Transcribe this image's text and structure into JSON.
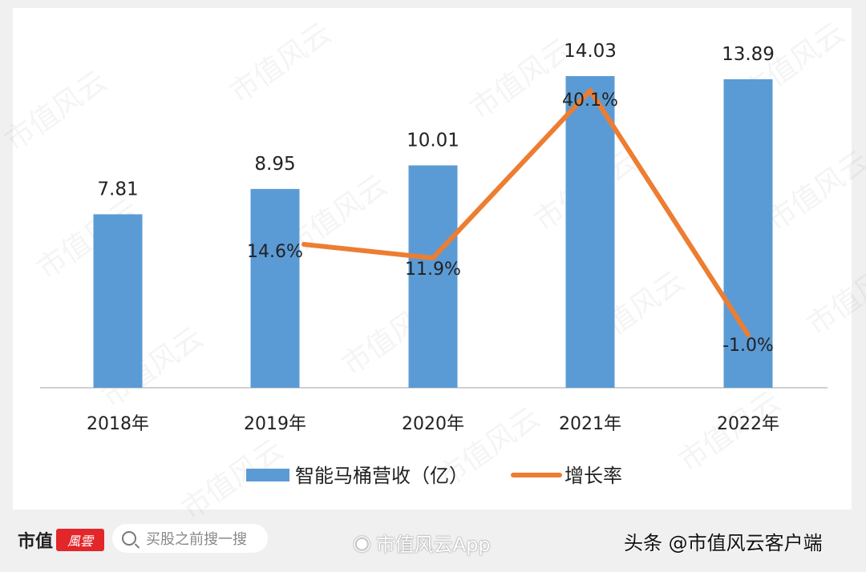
{
  "chart_data": {
    "type": "bar+line",
    "categories": [
      "2018年",
      "2019年",
      "2020年",
      "2021年",
      "2022年"
    ],
    "series": [
      {
        "name": "智能马桶营收（亿）",
        "type": "bar",
        "color": "#5b9bd5",
        "values": [
          7.81,
          8.95,
          10.01,
          14.03,
          13.89
        ],
        "labels": [
          "7.81",
          "8.95",
          "10.01",
          "14.03",
          "13.89"
        ]
      },
      {
        "name": "增长率",
        "type": "line",
        "color": "#ed7d31",
        "values": [
          null,
          14.6,
          11.9,
          40.1,
          -1.0
        ],
        "labels": [
          "",
          "14.6%",
          "11.9%",
          "40.1%",
          "-1.0%"
        ]
      }
    ],
    "title": "",
    "xlabel": "",
    "ylabel": "",
    "ylim": [
      0,
      14.03
    ],
    "grid": false,
    "legend_position": "bottom"
  },
  "legend": {
    "bar_label": "智能马桶营收（亿）",
    "line_label": "增长率"
  },
  "watermark": "市值风云",
  "footer": {
    "brand_text": "市值",
    "brand_badge": "風雲",
    "search_placeholder": "买股之前搜一搜",
    "weibo_text": "市值风云App",
    "toutiao_text": "头条 @市值风云客户端"
  },
  "colors": {
    "bar": "#5b9bd5",
    "line": "#ed7d31",
    "axis": "#d0d0d0",
    "background": "#f0f0f0",
    "brand_red": "#e3262a"
  }
}
